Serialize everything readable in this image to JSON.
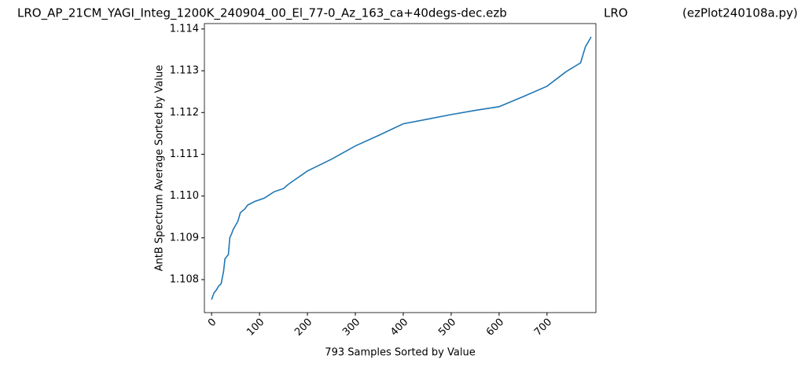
{
  "chart_data": {
    "type": "line",
    "title": "LRO_AP_21CM_YAGI_Integ_1200K_240904_00_El_77-0_Az_163_ca+40degs-dec.ezb",
    "title_center": "LRO",
    "title_right": "(ezPlot240108a.py)",
    "x_label": "793 Samples Sorted by Value",
    "y_label": "AntB Spectrum Average Sorted by Value",
    "series": [
      {
        "name": "AntB",
        "color": "#1f77b4",
        "x": [
          0,
          5,
          10,
          15,
          20,
          25,
          28,
          35,
          38,
          42,
          45,
          55,
          60,
          70,
          75,
          90,
          110,
          130,
          150,
          160,
          200,
          250,
          300,
          350,
          400,
          450,
          500,
          550,
          600,
          650,
          700,
          740,
          770,
          780,
          792
        ],
        "values": [
          1.10752,
          1.10768,
          1.10775,
          1.10785,
          1.1079,
          1.1082,
          1.1085,
          1.1086,
          1.109,
          1.1091,
          1.1092,
          1.1094,
          1.1096,
          1.1097,
          1.10978,
          1.10987,
          1.10995,
          1.1101,
          1.11018,
          1.11028,
          1.1106,
          1.11088,
          1.1112,
          1.11146,
          1.11173,
          1.11184,
          1.11195,
          1.11205,
          1.11214,
          1.11238,
          1.11263,
          1.11298,
          1.11319,
          1.11357,
          1.11381
        ]
      }
    ],
    "xlim": [
      -15,
      802
    ],
    "ylim": [
      1.10721,
      1.11413
    ],
    "xticks": [
      0,
      100,
      200,
      300,
      400,
      500,
      600,
      700
    ],
    "yticks": [
      1.108,
      1.109,
      {
        "value": 1.11,
        "label": "1.110"
      },
      1.111,
      1.112,
      1.113,
      1.114
    ],
    "grid": false
  }
}
